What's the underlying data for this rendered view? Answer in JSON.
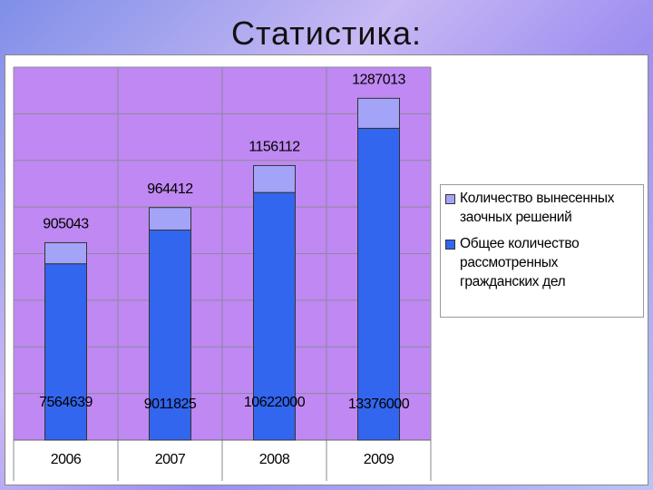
{
  "title": "Статистика:",
  "chart_data": {
    "type": "stacked_bar",
    "categories": [
      "2006",
      "2007",
      "2008",
      "2009"
    ],
    "series": [
      {
        "name": "Общее количество рассмотренных гражданских дел",
        "color": "#3366ee",
        "values": [
          7564639,
          9011825,
          10622000,
          13376000
        ]
      },
      {
        "name": "Количество вынесенных заочных решений",
        "color": "#a3a3f7",
        "values": [
          905043,
          964412,
          1156112,
          1287013
        ]
      }
    ],
    "ylim": [
      0,
      16000000
    ],
    "grid": true,
    "legend": "right"
  }
}
